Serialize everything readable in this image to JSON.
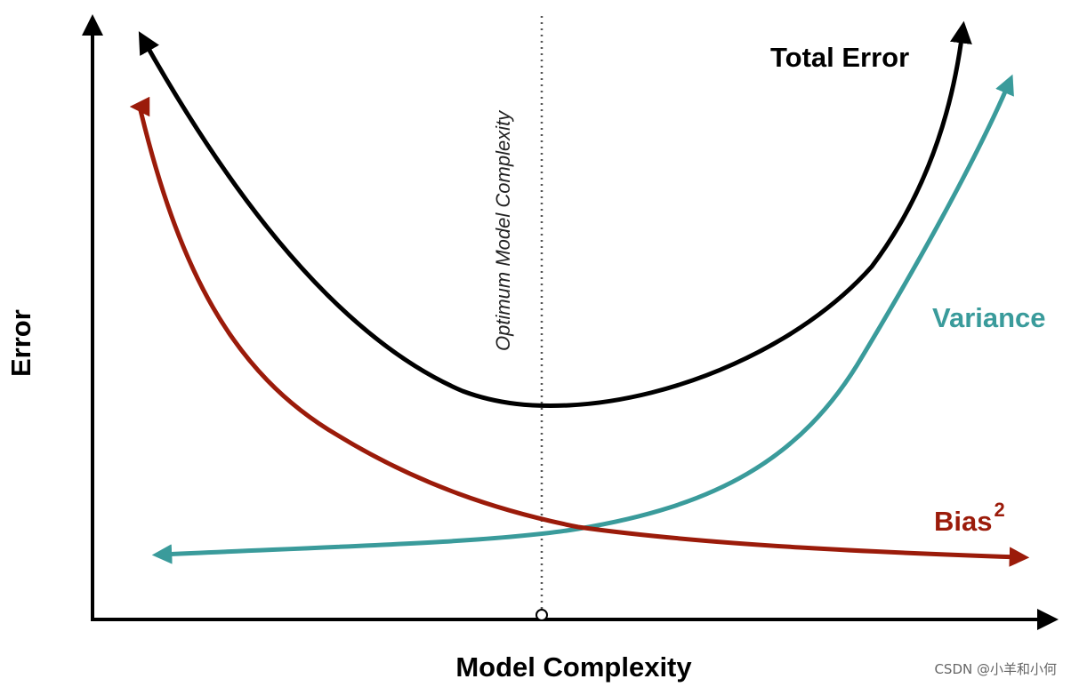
{
  "diagram": {
    "y_axis_label": "Error",
    "x_axis_label": "Model Complexity",
    "optimum_label": "Optimum Model Complexity",
    "total_error_label": "Total Error",
    "variance_label": "Variance",
    "bias_label": "Bias",
    "bias_superscript": "2",
    "watermark": "CSDN @小羊和小何",
    "colors": {
      "axis": "#000000",
      "total_error": "#000000",
      "variance": "#3a9b9b",
      "bias": "#9b1b0a",
      "optimum_line": "#555555"
    }
  }
}
